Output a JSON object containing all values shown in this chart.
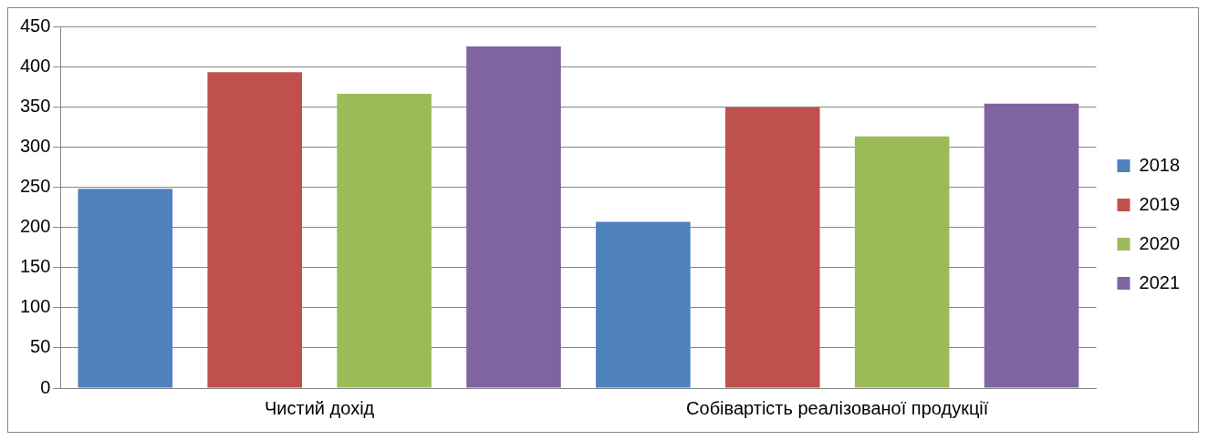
{
  "chart_data": {
    "type": "bar",
    "categories": [
      "Чистий дохід",
      "Собівартість реалізованої продукції"
    ],
    "series": [
      {
        "name": "2018",
        "color": "#4f81bd",
        "values": [
          248,
          207
        ]
      },
      {
        "name": "2019",
        "color": "#c0504d",
        "values": [
          393,
          349
        ]
      },
      {
        "name": "2020",
        "color": "#9bbb59",
        "values": [
          366,
          313
        ]
      },
      {
        "name": "2021",
        "color": "#8064a2",
        "values": [
          425,
          354
        ]
      }
    ],
    "ylim": [
      0,
      450
    ],
    "yticks": [
      0,
      50,
      100,
      150,
      200,
      250,
      300,
      350,
      400,
      450
    ],
    "grid": "y",
    "legend": "right"
  }
}
